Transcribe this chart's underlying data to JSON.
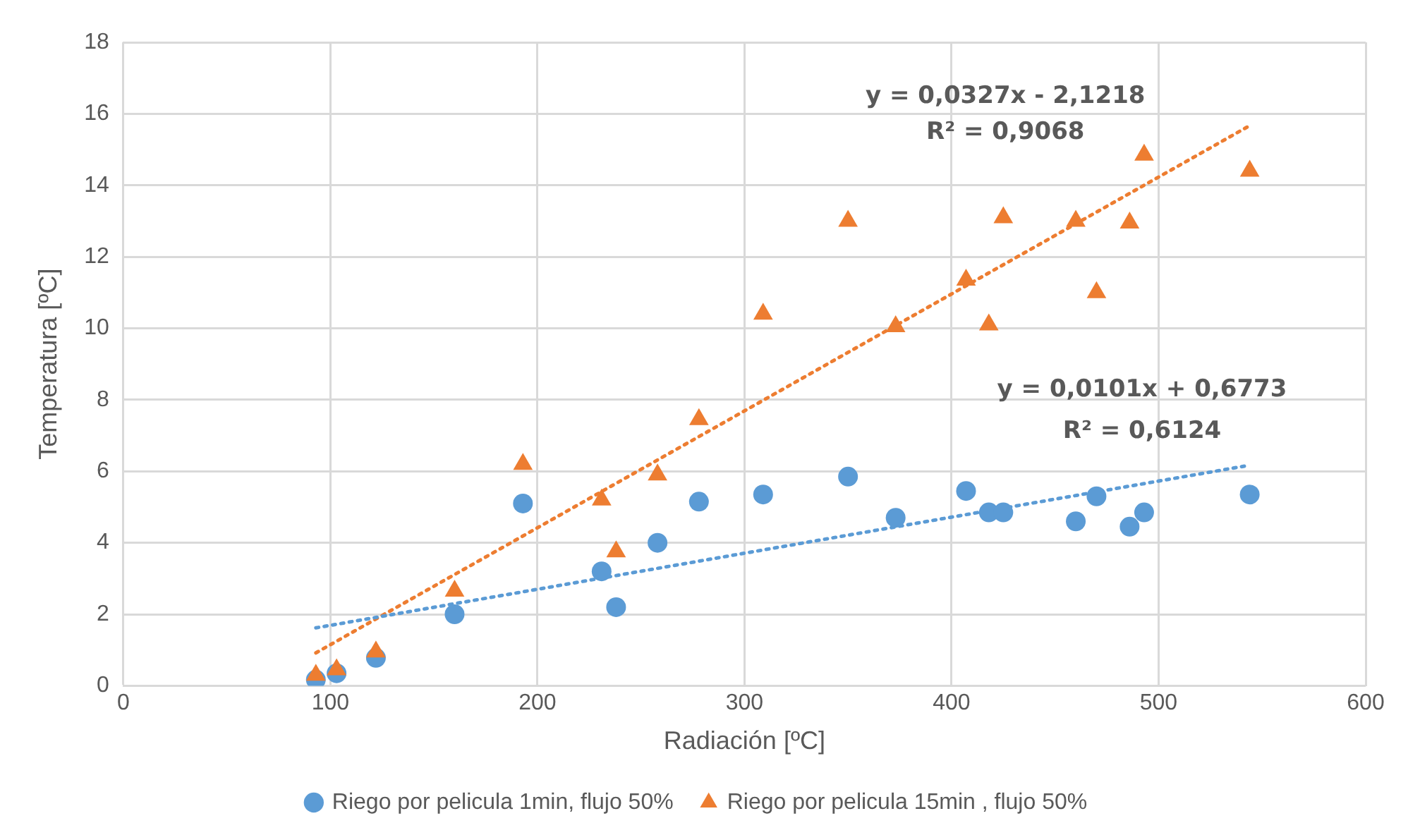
{
  "chart_data": {
    "type": "scatter",
    "xlabel": "Radiación [ºC]",
    "ylabel": "Temperatura [ºC]",
    "xlim": [
      0,
      600
    ],
    "xticks": [
      0,
      100,
      200,
      300,
      400,
      500,
      600
    ],
    "ylim": [
      0,
      18
    ],
    "yticks": [
      0,
      2,
      4,
      6,
      8,
      10,
      12,
      14,
      16,
      18
    ],
    "grid": true,
    "legend": "bottom",
    "series": [
      {
        "name": "Riego por pelicula 1min, flujo 50%",
        "color": "#5b9bd5",
        "marker": "circle",
        "x": [
          93,
          103,
          122,
          160,
          193,
          231,
          238,
          258,
          278,
          309,
          350,
          373,
          407,
          418,
          425,
          460,
          470,
          486,
          493,
          544
        ],
        "values": [
          0.17,
          0.35,
          0.78,
          2.0,
          5.1,
          3.2,
          2.2,
          4.0,
          5.15,
          5.35,
          5.85,
          4.7,
          5.45,
          4.85,
          4.85,
          4.6,
          5.3,
          4.45,
          4.85,
          5.35
        ]
      },
      {
        "name": "Riego por pelicula 15min , flujo 50%",
        "color": "#ed7d31",
        "marker": "triangle",
        "x": [
          93,
          103,
          122,
          160,
          193,
          231,
          238,
          258,
          278,
          309,
          350,
          373,
          407,
          418,
          425,
          460,
          470,
          486,
          493,
          544
        ],
        "values": [
          0.3,
          0.45,
          0.95,
          2.65,
          6.2,
          5.2,
          3.75,
          5.9,
          7.45,
          10.4,
          13.0,
          10.05,
          11.35,
          10.1,
          13.1,
          13.0,
          11.0,
          12.95,
          14.85,
          14.4
        ]
      },
      {
        "type": "line",
        "color": "#5b9bd5",
        "line_style": "dotted",
        "marker": "none",
        "x": [
          93,
          544
        ],
        "values": [
          1.62,
          6.17
        ]
      },
      {
        "type": "line",
        "color": "#ed7d31",
        "line_style": "dotted",
        "marker": "none",
        "x": [
          93,
          544
        ],
        "values": [
          0.92,
          15.67
        ]
      }
    ],
    "annotations": [
      "y = 0,0327x - 2,1218",
      "R² = 0,9068",
      "y = 0,0101x + 0,6773",
      "R² = 0,6124"
    ]
  }
}
